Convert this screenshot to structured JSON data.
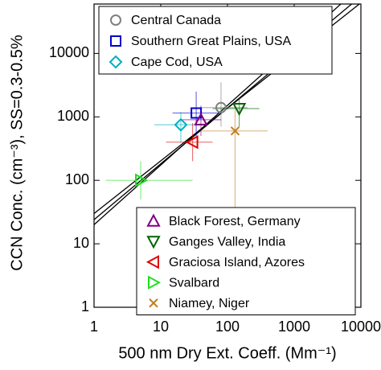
{
  "chart_data": {
    "type": "scatter",
    "xlabel": "500 nm Dry Ext. Coeff. (Mm⁻¹)",
    "ylabel": "CCN Conc. (cm⁻³),  SS=0.3-0.5%",
    "xscale": "log",
    "yscale": "log",
    "xlim": [
      1,
      10000
    ],
    "ylim": [
      1,
      60000
    ],
    "xticks": [
      1,
      10,
      100,
      1000,
      10000
    ],
    "yticks": [
      1,
      10,
      100,
      1000,
      10000
    ],
    "series": [
      {
        "name": "Central Canada",
        "color": "#808080",
        "marker": "circle",
        "legend": "upper left",
        "x": 80,
        "y": 1400,
        "x_range": [
          40,
          200
        ],
        "y_range": [
          700,
          3500
        ]
      },
      {
        "name": "Southern Great Plains, USA",
        "color": "#0000cc",
        "marker": "square",
        "legend": "upper left",
        "x": 34,
        "y": 1150,
        "x_range": [
          15,
          80
        ],
        "y_range": [
          500,
          2500
        ]
      },
      {
        "name": "Cape Cod, USA",
        "color": "#00b0c0",
        "marker": "diamond",
        "legend": "upper left",
        "x": 20,
        "y": 750,
        "x_range": [
          8,
          40
        ],
        "y_range": [
          400,
          1200
        ]
      },
      {
        "name": "Black Forest, Germany",
        "color": "#800080",
        "marker": "triangle-up",
        "legend": "lower right",
        "x": 40,
        "y": 900,
        "x_range": [
          20,
          80
        ],
        "y_range": [
          500,
          1500
        ]
      },
      {
        "name": "Ganges Valley, India",
        "color": "#006400",
        "marker": "triangle-down",
        "legend": "lower right",
        "x": 150,
        "y": 1350,
        "x_range": [
          60,
          300
        ],
        "y_range": [
          700,
          2000
        ]
      },
      {
        "name": "Graciosa Island, Azores",
        "color": "#e00000",
        "marker": "triangle-left",
        "legend": "lower right",
        "x": 30,
        "y": 400,
        "x_range": [
          12,
          60
        ],
        "y_range": [
          200,
          800
        ]
      },
      {
        "name": "Svalbard",
        "color": "#22dd22",
        "marker": "triangle-right",
        "legend": "lower right",
        "x": 5,
        "y": 100,
        "x_range": [
          1.5,
          30
        ],
        "y_range": [
          50,
          200
        ]
      },
      {
        "name": "Niamey, Niger",
        "color": "#c08020",
        "marker": "x",
        "legend": "lower right",
        "x": 130,
        "y": 600,
        "x_range": [
          40,
          400
        ],
        "y_range": [
          1.2,
          1300
        ]
      }
    ],
    "fit_lines": [
      {
        "intercept": 30,
        "slope": 0.83
      },
      {
        "intercept": 24,
        "slope": 0.88
      },
      {
        "intercept": 20,
        "slope": 0.94
      }
    ]
  }
}
